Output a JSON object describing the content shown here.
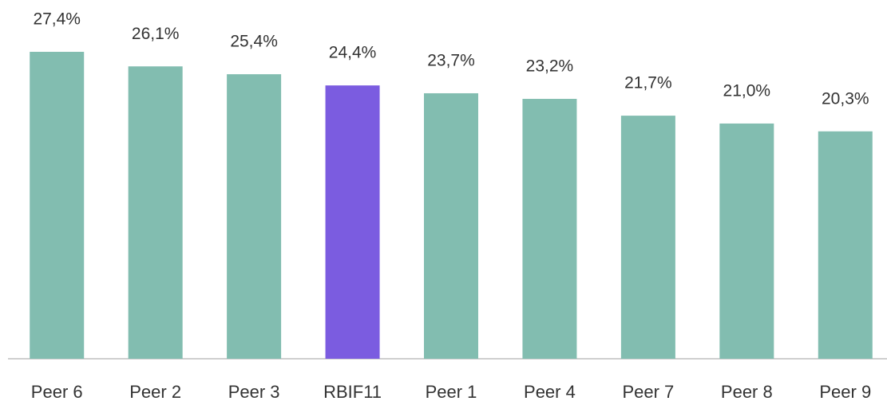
{
  "chart_data": {
    "type": "bar",
    "categories": [
      "Peer 6",
      "Peer 2",
      "Peer 3",
      "RBIF11",
      "Peer 1",
      "Peer 4",
      "Peer 7",
      "Peer 8",
      "Peer 9"
    ],
    "values": [
      27.4,
      26.1,
      25.4,
      24.4,
      23.7,
      23.2,
      21.7,
      21.0,
      20.3
    ],
    "value_labels": [
      "27,4%",
      "26,1%",
      "25,4%",
      "24,4%",
      "23,7%",
      "23,2%",
      "21,7%",
      "21,0%",
      "20,3%"
    ],
    "colors": [
      "#82bdb0",
      "#82bdb0",
      "#82bdb0",
      "#7b5ce0",
      "#82bdb0",
      "#82bdb0",
      "#82bdb0",
      "#82bdb0",
      "#82bdb0"
    ]
  }
}
